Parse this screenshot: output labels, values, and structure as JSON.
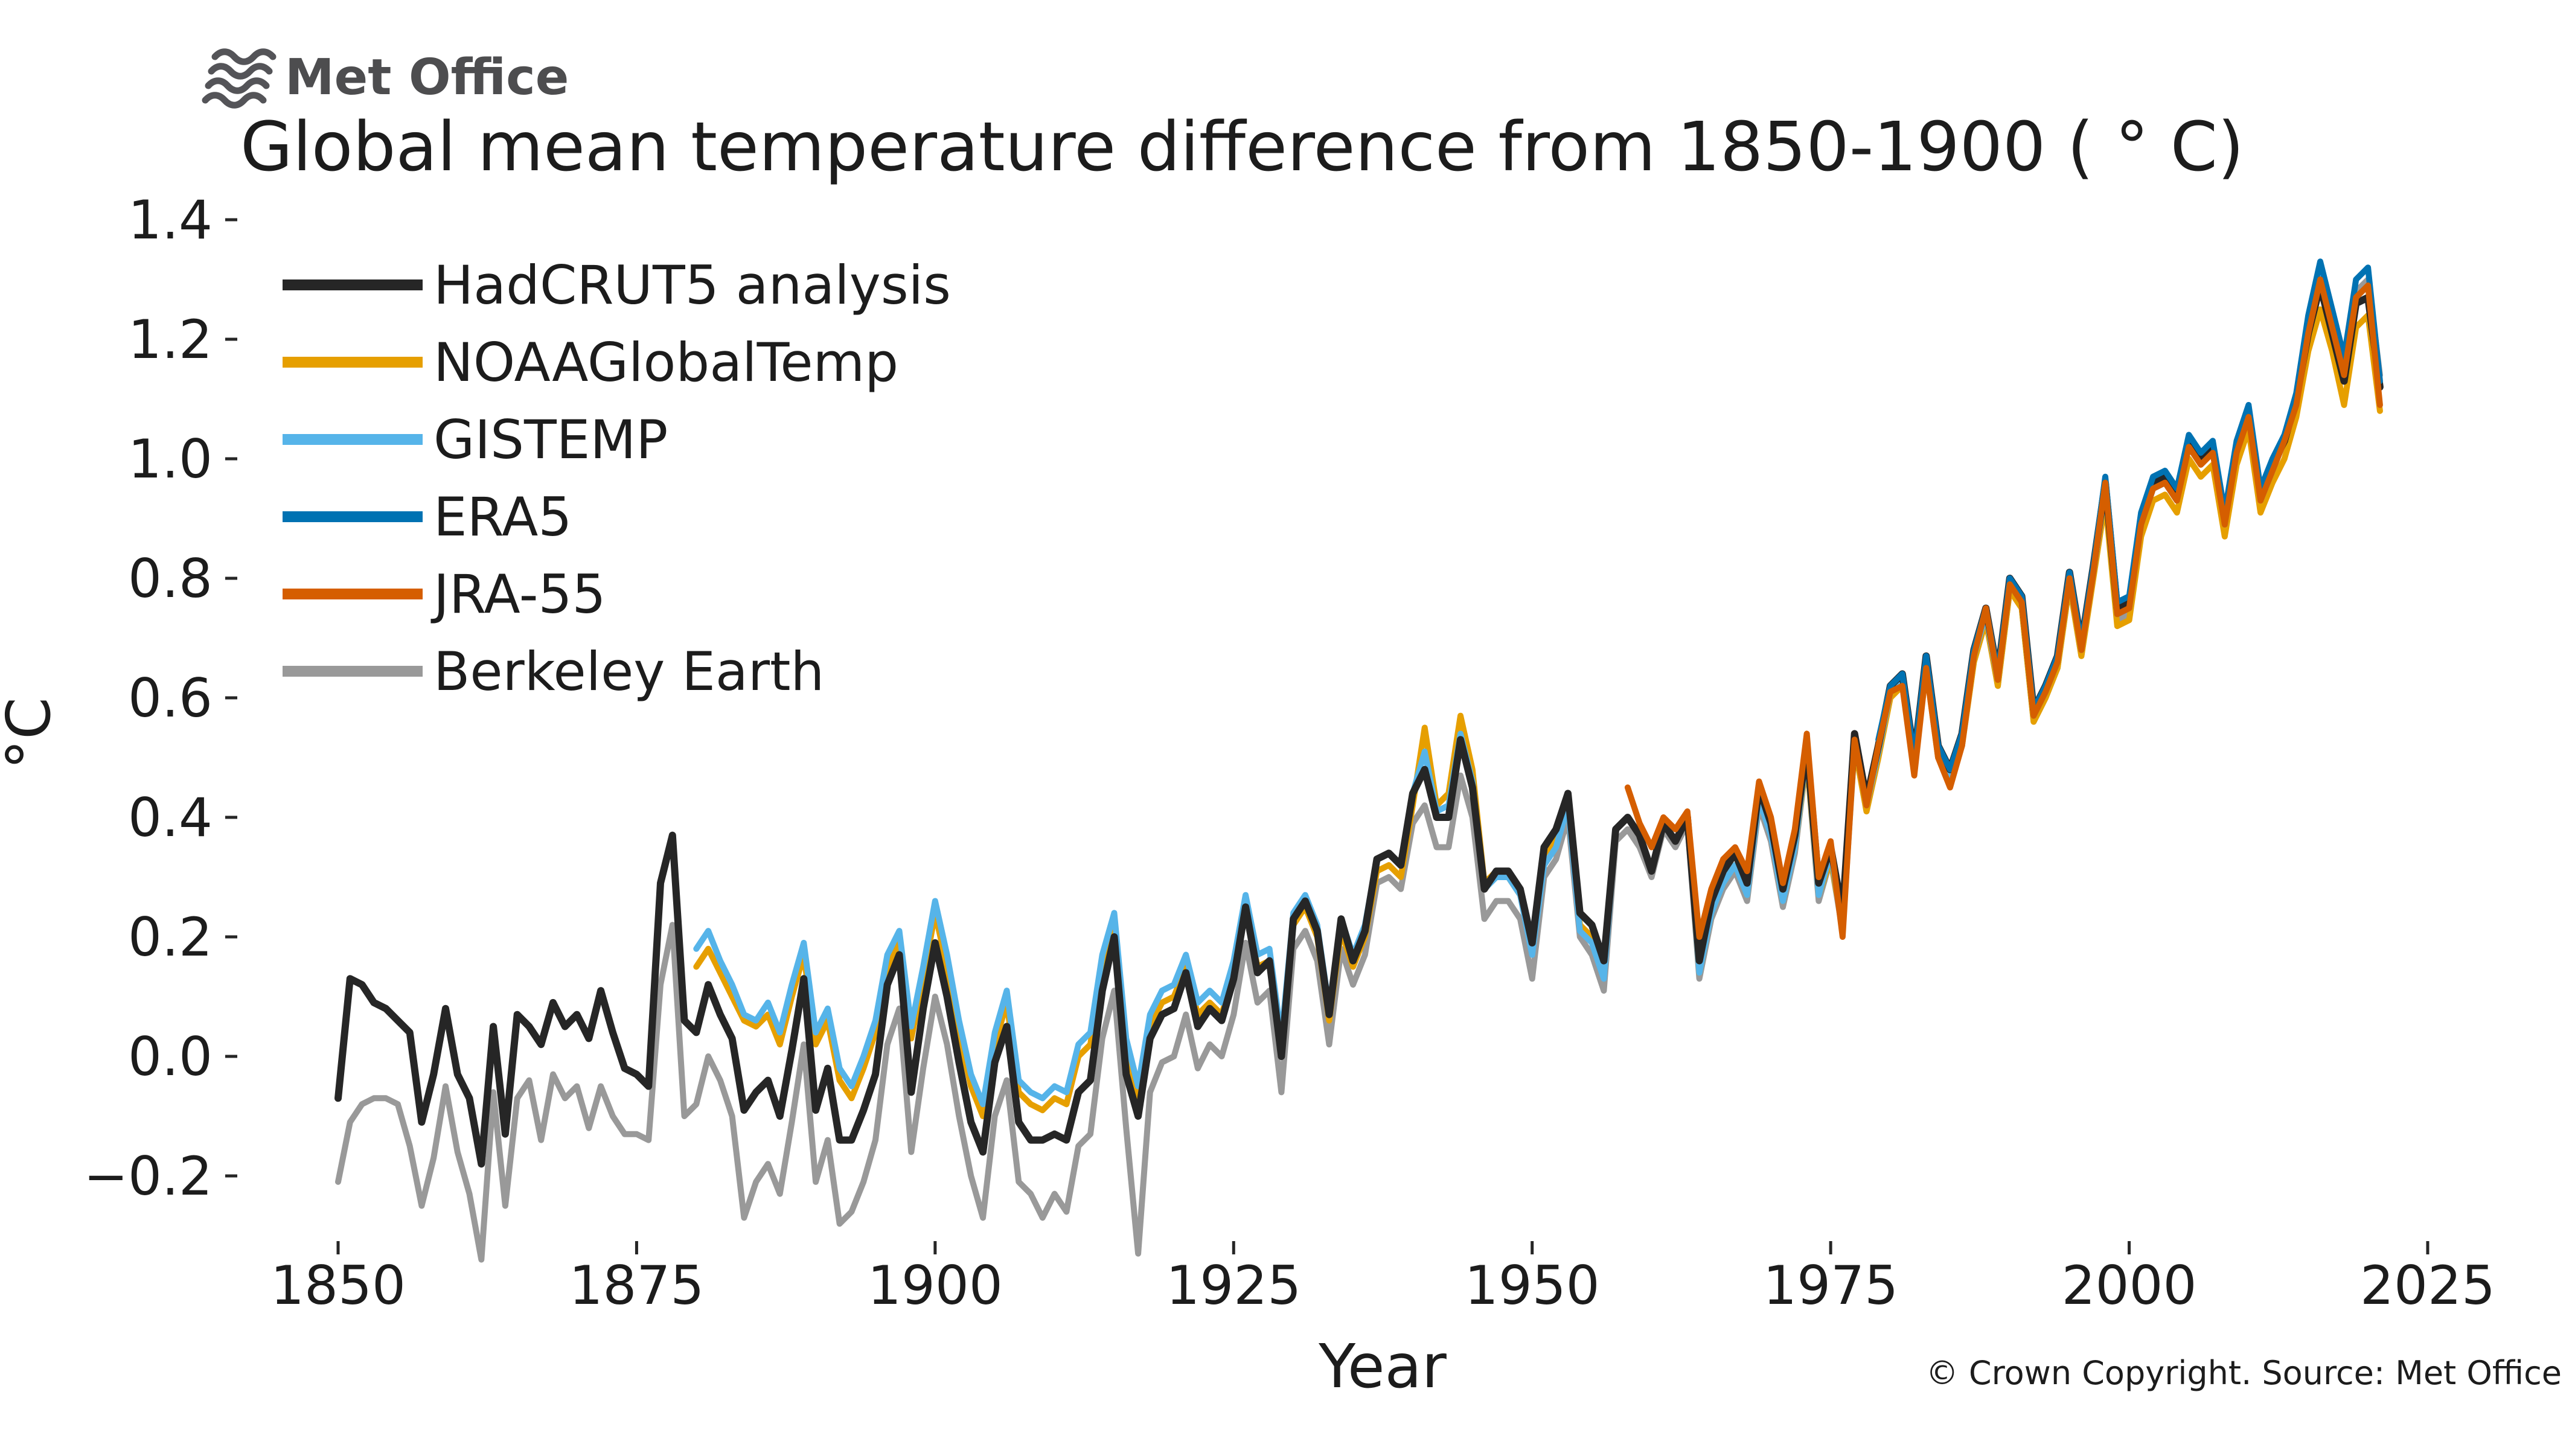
{
  "logo": {
    "text": "Met Office"
  },
  "title": "Global mean temperature difference from 1850-1900 ( ° C)",
  "footer": "© Crown Copyright. Source: Met Office",
  "chart_data": {
    "type": "line",
    "title": "Global mean temperature difference from 1850-1900 (°C)",
    "xlabel": "Year",
    "ylabel": "°C",
    "x_ticks": [
      1850,
      1875,
      1900,
      1925,
      1950,
      1975,
      2000,
      2025
    ],
    "y_ticks": [
      1.4,
      1.2,
      1.0,
      0.8,
      0.6,
      0.4,
      0.2,
      0.0,
      -0.2
    ],
    "xlim": [
      1845,
      2028
    ],
    "ylim": [
      -0.38,
      1.45
    ],
    "grid": false,
    "legend_position": "upper left",
    "draw_order": [
      "Berkeley Earth",
      "NOAAGlobalTemp",
      "GISTEMP",
      "HadCRUT5 analysis",
      "ERA5",
      "JRA-55"
    ],
    "series": [
      {
        "name": "HadCRUT5 analysis",
        "color": "#262626",
        "start_year": 1850,
        "values": [
          -0.07,
          0.13,
          0.12,
          0.09,
          0.08,
          0.06,
          0.04,
          -0.11,
          -0.03,
          0.08,
          -0.03,
          -0.07,
          -0.18,
          0.05,
          -0.13,
          0.07,
          0.05,
          0.02,
          0.09,
          0.05,
          0.07,
          0.03,
          0.11,
          0.04,
          -0.02,
          -0.03,
          -0.05,
          0.29,
          0.37,
          0.06,
          0.04,
          0.12,
          0.07,
          0.03,
          -0.09,
          -0.06,
          -0.04,
          -0.1,
          0.01,
          0.13,
          -0.09,
          -0.02,
          -0.14,
          -0.14,
          -0.09,
          -0.03,
          0.12,
          0.17,
          -0.06,
          0.08,
          0.19,
          0.1,
          -0.01,
          -0.11,
          -0.16,
          -0.01,
          0.05,
          -0.11,
          -0.14,
          -0.14,
          -0.13,
          -0.14,
          -0.06,
          -0.04,
          0.11,
          0.2,
          -0.03,
          -0.1,
          0.03,
          0.07,
          0.08,
          0.14,
          0.05,
          0.08,
          0.06,
          0.13,
          0.25,
          0.14,
          0.16,
          0.0,
          0.23,
          0.26,
          0.21,
          0.07,
          0.23,
          0.16,
          0.21,
          0.33,
          0.34,
          0.32,
          0.44,
          0.48,
          0.4,
          0.4,
          0.53,
          0.45,
          0.28,
          0.31,
          0.31,
          0.28,
          0.19,
          0.35,
          0.38,
          0.44,
          0.24,
          0.22,
          0.16,
          0.38,
          0.4,
          0.37,
          0.31,
          0.39,
          0.36,
          0.4,
          0.16,
          0.26,
          0.31,
          0.34,
          0.29,
          0.45,
          0.39,
          0.28,
          0.37,
          0.52,
          0.29,
          0.35,
          0.24,
          0.54,
          0.43,
          0.52,
          0.62,
          0.64,
          0.5,
          0.67,
          0.52,
          0.48,
          0.54,
          0.68,
          0.75,
          0.64,
          0.8,
          0.77,
          0.58,
          0.62,
          0.67,
          0.81,
          0.69,
          0.82,
          0.96,
          0.75,
          0.76,
          0.9,
          0.96,
          0.97,
          0.94,
          1.03,
          1.0,
          1.02,
          0.9,
          1.02,
          1.08,
          0.94,
          0.99,
          1.03,
          1.1,
          1.21,
          1.29,
          1.21,
          1.13,
          1.26,
          1.27,
          1.12
        ]
      },
      {
        "name": "NOAAGlobalTemp",
        "color": "#E69F00",
        "start_year": 1880,
        "values": [
          0.15,
          0.18,
          0.14,
          0.1,
          0.06,
          0.05,
          0.07,
          0.02,
          0.1,
          0.17,
          0.02,
          0.06,
          -0.04,
          -0.07,
          -0.02,
          0.04,
          0.15,
          0.19,
          0.03,
          0.13,
          0.24,
          0.15,
          0.04,
          -0.05,
          -0.1,
          0.02,
          0.09,
          -0.06,
          -0.08,
          -0.09,
          -0.07,
          -0.08,
          0.0,
          0.02,
          0.15,
          0.22,
          0.01,
          -0.07,
          0.05,
          0.09,
          0.1,
          0.15,
          0.07,
          0.09,
          0.07,
          0.14,
          0.25,
          0.15,
          0.16,
          0.01,
          0.22,
          0.25,
          0.2,
          0.06,
          0.21,
          0.15,
          0.2,
          0.31,
          0.32,
          0.3,
          0.42,
          0.55,
          0.42,
          0.44,
          0.57,
          0.48,
          0.29,
          0.31,
          0.3,
          0.27,
          0.18,
          0.33,
          0.36,
          0.42,
          0.22,
          0.2,
          0.14,
          0.38,
          0.4,
          0.37,
          0.31,
          0.39,
          0.36,
          0.4,
          0.14,
          0.24,
          0.29,
          0.32,
          0.27,
          0.43,
          0.37,
          0.26,
          0.35,
          0.5,
          0.27,
          0.33,
          0.22,
          0.52,
          0.41,
          0.5,
          0.6,
          0.62,
          0.48,
          0.65,
          0.5,
          0.46,
          0.52,
          0.66,
          0.73,
          0.62,
          0.78,
          0.75,
          0.56,
          0.6,
          0.65,
          0.79,
          0.67,
          0.8,
          0.93,
          0.72,
          0.73,
          0.87,
          0.93,
          0.94,
          0.91,
          1.0,
          0.97,
          0.99,
          0.87,
          0.99,
          1.05,
          0.91,
          0.96,
          1.0,
          1.07,
          1.18,
          1.25,
          1.18,
          1.09,
          1.22,
          1.24,
          1.08
        ]
      },
      {
        "name": "GISTEMP",
        "color": "#56B4E9",
        "start_year": 1880,
        "values": [
          0.18,
          0.21,
          0.16,
          0.12,
          0.07,
          0.06,
          0.09,
          0.04,
          0.12,
          0.19,
          0.04,
          0.08,
          -0.02,
          -0.05,
          0.0,
          0.06,
          0.17,
          0.21,
          0.05,
          0.15,
          0.26,
          0.17,
          0.06,
          -0.03,
          -0.08,
          0.04,
          0.11,
          -0.04,
          -0.06,
          -0.07,
          -0.05,
          -0.06,
          0.02,
          0.04,
          0.17,
          0.24,
          0.03,
          -0.05,
          0.07,
          0.11,
          0.12,
          0.17,
          0.09,
          0.11,
          0.09,
          0.16,
          0.27,
          0.17,
          0.18,
          0.03,
          0.24,
          0.27,
          0.22,
          0.08,
          0.23,
          0.17,
          0.22,
          0.33,
          0.34,
          0.32,
          0.44,
          0.51,
          0.41,
          0.42,
          0.54,
          0.46,
          0.28,
          0.3,
          0.3,
          0.27,
          0.17,
          0.32,
          0.35,
          0.42,
          0.21,
          0.19,
          0.13,
          0.38,
          0.4,
          0.37,
          0.31,
          0.39,
          0.36,
          0.4,
          0.14,
          0.24,
          0.29,
          0.32,
          0.27,
          0.43,
          0.37,
          0.26,
          0.35,
          0.51,
          0.27,
          0.34,
          0.22,
          0.53,
          0.42,
          0.51,
          0.61,
          0.63,
          0.49,
          0.66,
          0.51,
          0.47,
          0.53,
          0.67,
          0.74,
          0.63,
          0.79,
          0.76,
          0.57,
          0.61,
          0.66,
          0.8,
          0.68,
          0.81,
          0.95,
          0.74,
          0.75,
          0.89,
          0.95,
          0.96,
          0.93,
          1.03,
          1.0,
          1.02,
          0.89,
          1.02,
          1.08,
          0.93,
          0.98,
          1.03,
          1.1,
          1.22,
          1.31,
          1.23,
          1.14,
          1.27,
          1.29,
          1.12
        ]
      },
      {
        "name": "ERA5",
        "color": "#0072B2",
        "start_year": 1979,
        "values": [
          0.53,
          0.62,
          0.64,
          0.5,
          0.67,
          0.52,
          0.48,
          0.54,
          0.68,
          0.75,
          0.64,
          0.8,
          0.77,
          0.58,
          0.62,
          0.67,
          0.81,
          0.69,
          0.82,
          0.97,
          0.76,
          0.77,
          0.91,
          0.97,
          0.98,
          0.95,
          1.04,
          1.01,
          1.03,
          0.91,
          1.03,
          1.09,
          0.95,
          1.0,
          1.04,
          1.11,
          1.24,
          1.33,
          1.25,
          1.17,
          1.3,
          1.32,
          1.13
        ]
      },
      {
        "name": "JRA-55",
        "color": "#D55E00",
        "start_year": 1958,
        "values": [
          0.45,
          0.39,
          0.35,
          0.4,
          0.38,
          0.41,
          0.2,
          0.28,
          0.33,
          0.35,
          0.31,
          0.46,
          0.4,
          0.29,
          0.38,
          0.54,
          0.3,
          0.36,
          0.2,
          0.53,
          0.42,
          0.52,
          0.61,
          0.62,
          0.47,
          0.65,
          0.5,
          0.45,
          0.52,
          0.67,
          0.75,
          0.63,
          0.79,
          0.76,
          0.57,
          0.61,
          0.66,
          0.8,
          0.68,
          0.81,
          0.96,
          0.74,
          0.75,
          0.89,
          0.95,
          0.96,
          0.93,
          1.02,
          0.99,
          1.01,
          0.89,
          1.01,
          1.07,
          0.93,
          0.98,
          1.03,
          1.09,
          1.21,
          1.3,
          1.22,
          1.14,
          1.27,
          1.29,
          1.09
        ]
      },
      {
        "name": "Berkeley Earth",
        "color": "#999999",
        "start_year": 1850,
        "values": [
          -0.21,
          -0.11,
          -0.08,
          -0.07,
          -0.07,
          -0.08,
          -0.15,
          -0.25,
          -0.17,
          -0.05,
          -0.16,
          -0.23,
          -0.34,
          -0.06,
          -0.25,
          -0.07,
          -0.04,
          -0.14,
          -0.03,
          -0.07,
          -0.05,
          -0.12,
          -0.05,
          -0.1,
          -0.13,
          -0.13,
          -0.14,
          0.12,
          0.22,
          -0.1,
          -0.08,
          0.0,
          -0.04,
          -0.1,
          -0.27,
          -0.21,
          -0.18,
          -0.23,
          -0.11,
          0.02,
          -0.21,
          -0.14,
          -0.28,
          -0.26,
          -0.21,
          -0.14,
          0.02,
          0.08,
          -0.16,
          -0.02,
          0.1,
          0.02,
          -0.1,
          -0.2,
          -0.27,
          -0.1,
          -0.04,
          -0.21,
          -0.23,
          -0.27,
          -0.23,
          -0.26,
          -0.15,
          -0.13,
          0.03,
          0.11,
          -0.12,
          -0.33,
          -0.06,
          -0.01,
          0.0,
          0.07,
          -0.02,
          0.02,
          0.0,
          0.07,
          0.19,
          0.09,
          0.11,
          -0.06,
          0.18,
          0.21,
          0.16,
          0.02,
          0.18,
          0.12,
          0.17,
          0.29,
          0.3,
          0.28,
          0.39,
          0.42,
          0.35,
          0.35,
          0.47,
          0.4,
          0.23,
          0.26,
          0.26,
          0.23,
          0.13,
          0.3,
          0.33,
          0.4,
          0.2,
          0.17,
          0.11,
          0.36,
          0.38,
          0.35,
          0.3,
          0.38,
          0.35,
          0.39,
          0.13,
          0.23,
          0.28,
          0.31,
          0.26,
          0.42,
          0.36,
          0.25,
          0.34,
          0.5,
          0.26,
          0.33,
          0.21,
          0.52,
          0.41,
          0.5,
          0.61,
          0.63,
          0.48,
          0.66,
          0.5,
          0.46,
          0.52,
          0.66,
          0.73,
          0.62,
          0.78,
          0.75,
          0.56,
          0.6,
          0.65,
          0.79,
          0.67,
          0.81,
          0.94,
          0.73,
          0.74,
          0.89,
          0.95,
          0.96,
          0.93,
          1.03,
          1.0,
          1.02,
          0.89,
          1.02,
          1.08,
          0.93,
          0.98,
          1.03,
          1.11,
          1.23,
          1.32,
          1.24,
          1.15,
          1.28,
          1.3,
          1.14
        ]
      }
    ]
  }
}
